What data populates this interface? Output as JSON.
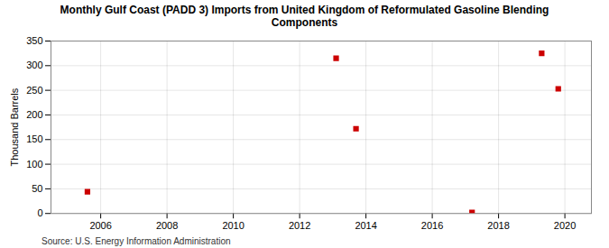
{
  "chart_data": {
    "type": "scatter",
    "title": "Monthly Gulf Coast (PADD 3) Imports from United Kingdom of Reformulated Gasoline Blending\nComponents",
    "ylabel": "Thousand Barrels",
    "source": "Source: U.S. Energy Information Administration",
    "x": [
      2005.6,
      2013.1,
      2013.7,
      2017.2,
      2019.3,
      2019.8
    ],
    "values": [
      44,
      315,
      172,
      2,
      325,
      253
    ],
    "color": "#cc0000",
    "marker": "square",
    "xlim": [
      2004.5,
      2020.8
    ],
    "ylim": [
      0,
      350
    ],
    "xticks": [
      2006,
      2008,
      2010,
      2012,
      2014,
      2016,
      2018,
      2020
    ],
    "yticks": [
      0,
      50,
      100,
      150,
      200,
      250,
      300,
      350
    ],
    "grid": true
  }
}
